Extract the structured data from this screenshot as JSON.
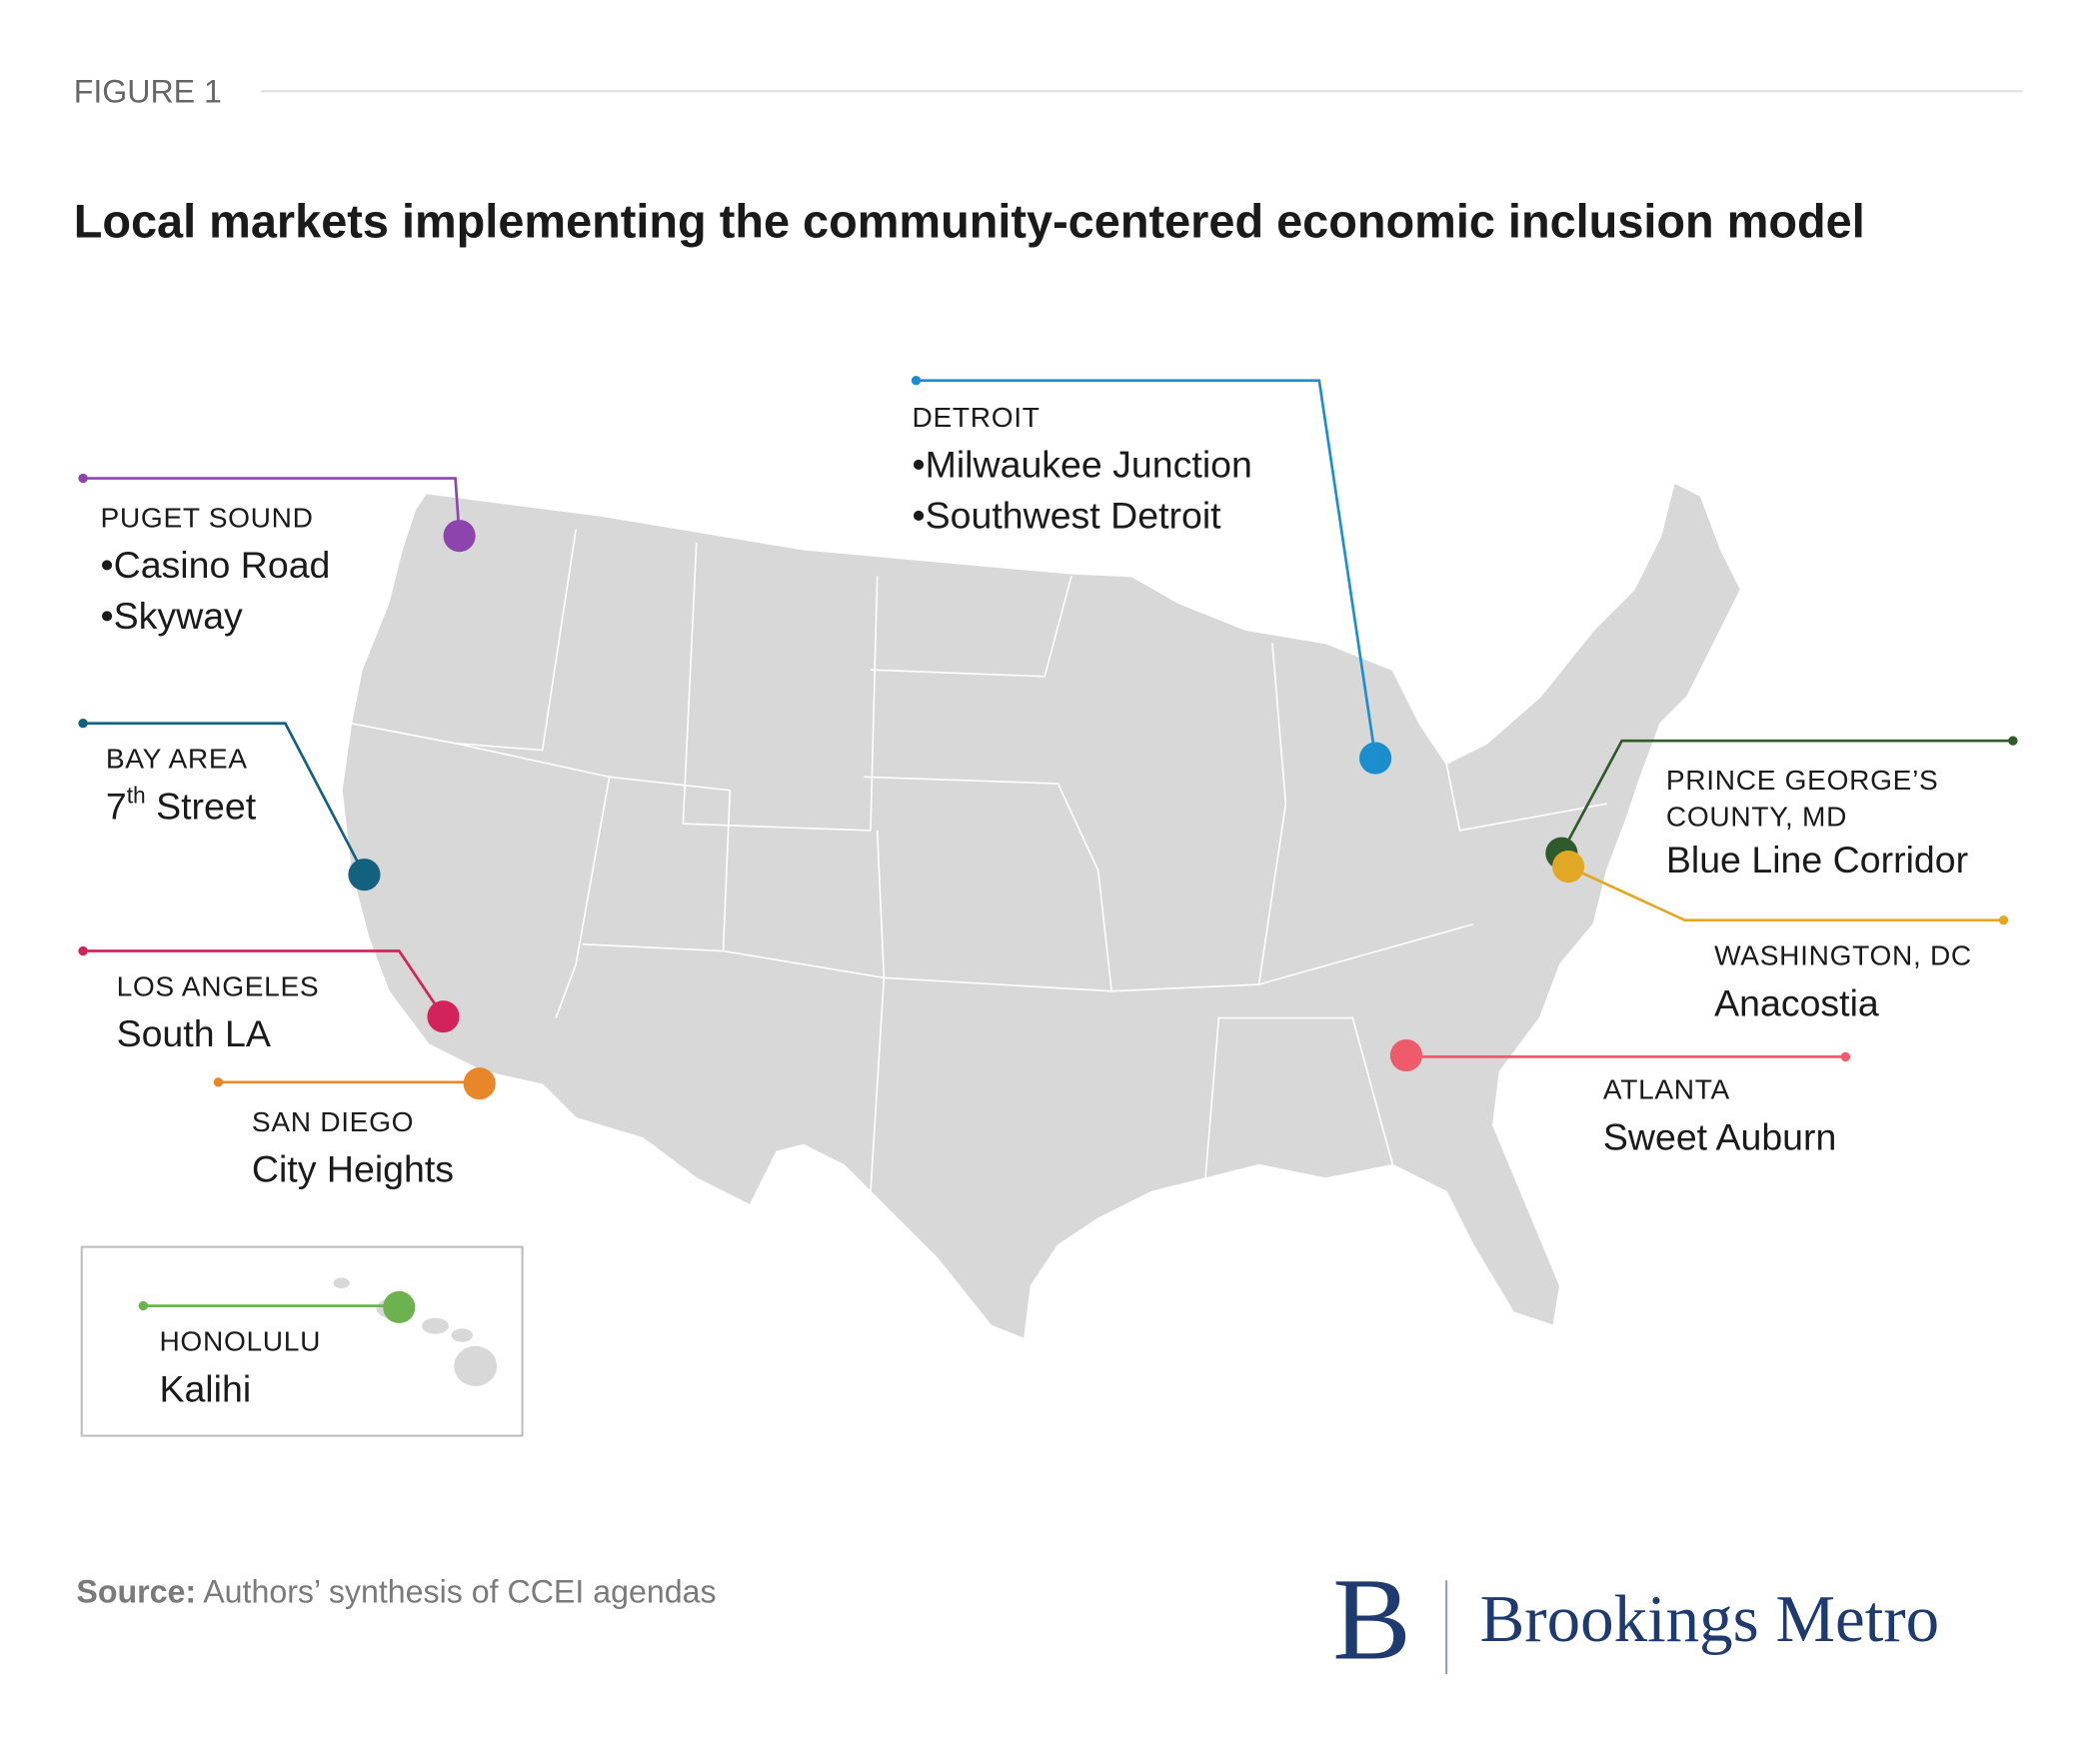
{
  "figure_label": "FIGURE 1",
  "title": "Local markets implementing the community-centered economic inclusion model",
  "markers": [
    {
      "label_lines": [
        "PUGET SOUND"
      ],
      "places": [
        "•Casino Road",
        "•Skyway"
      ],
      "color": "#8e44ad"
    },
    {
      "label_lines": [
        "DETROIT"
      ],
      "places": [
        "•Milwaukee Junction",
        "•Southwest Detroit"
      ],
      "color": "#1b8fcd"
    },
    {
      "label_lines": [
        "BAY AREA"
      ],
      "places": [
        {
          "number": "7",
          "suffix": "th",
          "rest": " Street"
        }
      ],
      "color": "#12617f"
    },
    {
      "label_lines": [
        "LOS ANGELES"
      ],
      "places": [
        "South LA"
      ],
      "color": "#d2235a"
    },
    {
      "label_lines": [
        "SAN DIEGO"
      ],
      "places": [
        "City Heights"
      ],
      "color": "#e8862a"
    },
    {
      "label_lines": [
        "HONOLULU"
      ],
      "places": [
        "Kalihi"
      ],
      "color": "#6cb24e"
    },
    {
      "label_lines": [
        "PRINCE GEORGE’S",
        "COUNTY, MD"
      ],
      "places": [
        "Blue Line Corridor"
      ],
      "color": "#2f5a2a"
    },
    {
      "label_lines": [
        "WASHINGTON, DC"
      ],
      "places": [
        "Anacostia"
      ],
      "color": "#e1a826"
    },
    {
      "label_lines": [
        "ATLANTA"
      ],
      "places": [
        "Sweet Auburn"
      ],
      "color": "#ee5b6b"
    }
  ],
  "source": {
    "label": "Source:",
    "text": " Authors’ synthesis of CCEI agendas"
  },
  "logo": {
    "mark": "B",
    "text": "Brookings Metro"
  }
}
